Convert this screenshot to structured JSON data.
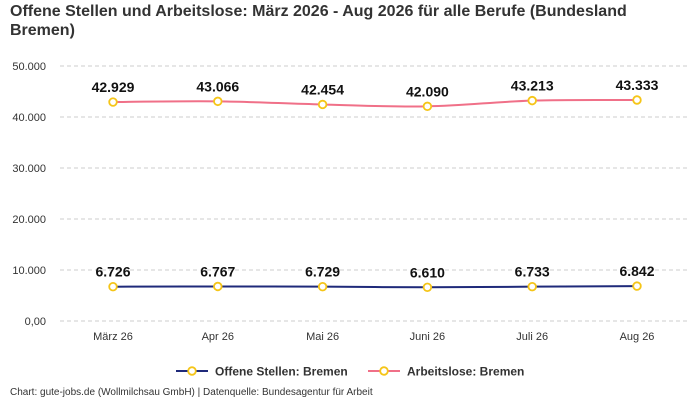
{
  "chart_data": {
    "type": "line",
    "title": "Offene Stellen und Arbeitslose: März 2026 - Aug 2026 für alle Berufe (Bundesland Bremen)",
    "categories": [
      "März 26",
      "Apr 26",
      "Mai 26",
      "Juni 26",
      "Juli 26",
      "Aug 26"
    ],
    "ylim": [
      0,
      50000
    ],
    "yticks": [
      0,
      10000,
      20000,
      30000,
      40000,
      50000
    ],
    "ytick_labels": [
      "0,00",
      "10.000",
      "20.000",
      "30.000",
      "40.000",
      "50.000"
    ],
    "grid": true,
    "legend_position": "bottom-center",
    "series": [
      {
        "name": "Offene Stellen: Bremen",
        "color": "#1f2a7a",
        "values": [
          6726,
          6767,
          6729,
          6610,
          6733,
          6842
        ],
        "labels": [
          "6.726",
          "6.767",
          "6.729",
          "6.610",
          "6.733",
          "6.842"
        ]
      },
      {
        "name": "Arbeitslose: Bremen",
        "color": "#f07088",
        "values": [
          42929,
          43066,
          42454,
          42090,
          43213,
          43333
        ],
        "labels": [
          "42.929",
          "43.066",
          "42.454",
          "42.090",
          "43.213",
          "43.333"
        ]
      }
    ],
    "marker_color": "#f5c518",
    "source": "Chart: gute-jobs.de (Wollmilchsau GmbH) | Datenquelle: Bundesagentur für Arbeit"
  }
}
